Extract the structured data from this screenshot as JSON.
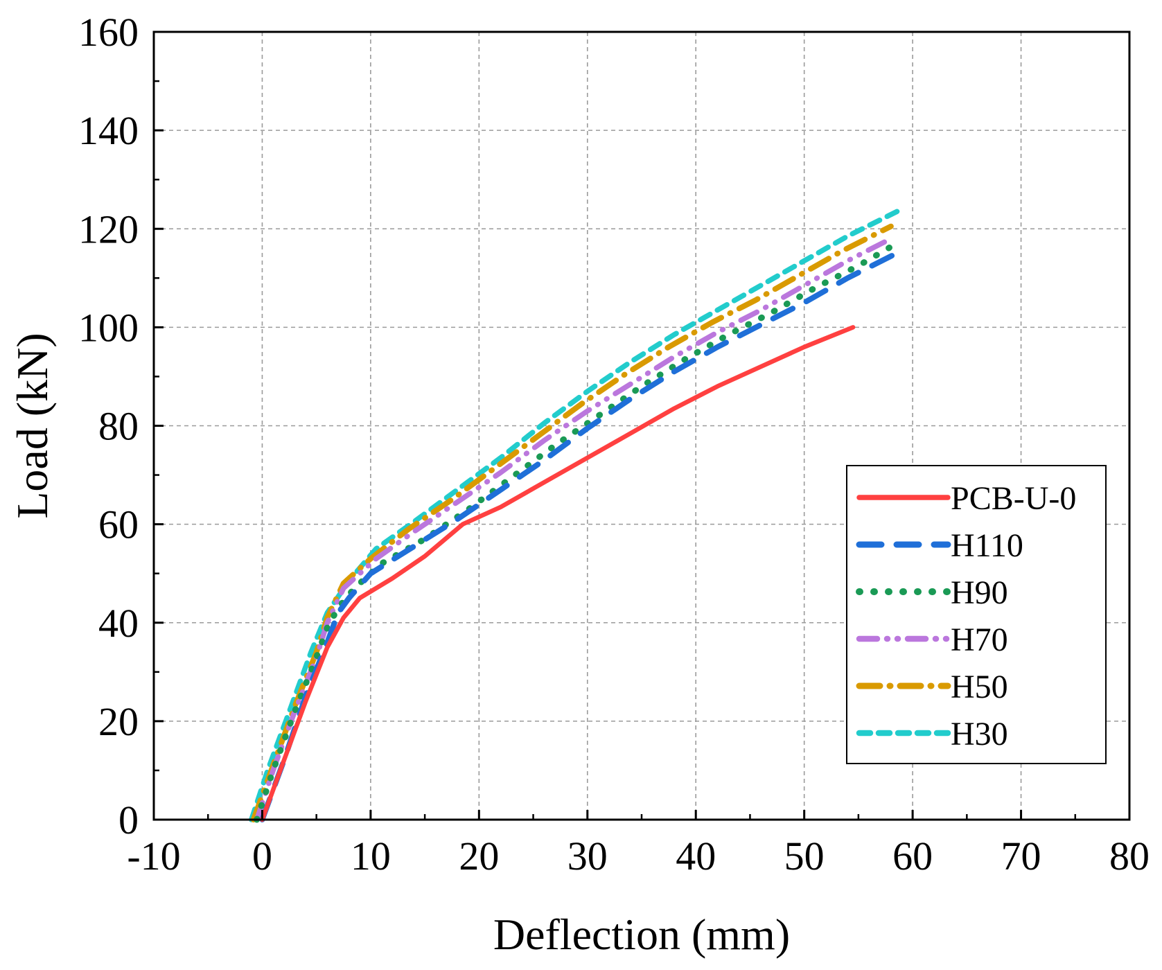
{
  "chart_data": {
    "type": "line",
    "title": "",
    "xlabel": "Deflection (mm)",
    "ylabel": "Load (kN)",
    "xlim": [
      -10,
      80
    ],
    "ylim": [
      0,
      160
    ],
    "x_ticks": [
      "-10",
      "0",
      "10",
      "20",
      "30",
      "40",
      "50",
      "60",
      "70",
      "80"
    ],
    "y_ticks": [
      "0",
      "20",
      "40",
      "60",
      "80",
      "100",
      "120",
      "140",
      "160"
    ],
    "grid": true,
    "legend_position": "lower-right",
    "series": [
      {
        "name": "PCB-U-0",
        "color": "#ff4040",
        "dash": "solid",
        "x": [
          0,
          2,
          4,
          6,
          7.5,
          9,
          12,
          15,
          18.5,
          22,
          26,
          30,
          34,
          38,
          42,
          46,
          50,
          54.5
        ],
        "y": [
          0,
          12,
          24,
          35,
          41,
          45,
          49,
          53.5,
          60,
          63.5,
          68.5,
          73.5,
          78.5,
          83.5,
          88,
          92,
          96,
          100
        ]
      },
      {
        "name": "H110",
        "color": "#1f6fd8",
        "dash": "long-dash",
        "x": [
          0,
          2,
          4,
          6,
          7,
          8,
          10,
          14,
          18,
          22,
          26,
          30,
          34,
          38,
          42,
          46,
          50,
          54,
          58.5
        ],
        "y": [
          0,
          12,
          25,
          36,
          42,
          45,
          50,
          55.5,
          61,
          67,
          73,
          79.5,
          85.5,
          91,
          96,
          100.5,
          105,
          110,
          115
        ]
      },
      {
        "name": "H90",
        "color": "#1a9a55",
        "dash": "dot",
        "x": [
          -0.5,
          1,
          3,
          5,
          6,
          7,
          8.5,
          11,
          15,
          19,
          23,
          27,
          31,
          35,
          39,
          43,
          47,
          51,
          55,
          58.5
        ],
        "y": [
          0,
          10,
          22,
          33,
          39,
          43,
          47,
          52,
          57,
          63,
          69.5,
          76,
          82,
          88,
          93.5,
          98.5,
          103,
          108,
          112.5,
          117
        ]
      },
      {
        "name": "H70",
        "color": "#bb77dd",
        "dash": "dash-dot-dot",
        "x": [
          -0.5,
          1,
          3,
          5,
          6,
          7.5,
          10.5,
          14,
          18,
          22,
          26,
          30,
          34,
          38,
          42,
          46,
          50,
          54,
          58
        ],
        "y": [
          0,
          10,
          22,
          33,
          40,
          47,
          53,
          58.5,
          64.5,
          70.5,
          77,
          83,
          88.5,
          94,
          99,
          103.5,
          108.5,
          113.5,
          118
        ]
      },
      {
        "name": "H50",
        "color": "#d99a00",
        "dash": "dash-dot",
        "x": [
          -0.8,
          1,
          3,
          5,
          6,
          7.5,
          10,
          13.5,
          17.5,
          21.5,
          25.5,
          29.5,
          33.5,
          37.5,
          41.5,
          45.5,
          49.5,
          53.5,
          58
        ],
        "y": [
          0,
          11,
          23,
          34,
          41,
          48,
          53,
          59,
          65,
          71.5,
          78,
          84.5,
          90.5,
          96,
          101,
          105.5,
          110.5,
          115.5,
          120.5
        ]
      },
      {
        "name": "H30",
        "color": "#22cccc",
        "dash": "short-dash",
        "x": [
          -1,
          0.5,
          2.5,
          4.5,
          6,
          8,
          10.5,
          14,
          18,
          22,
          26,
          30,
          34,
          38,
          42,
          46,
          50,
          54,
          59
        ],
        "y": [
          0,
          10,
          22,
          34,
          42,
          48.5,
          55,
          60.5,
          67,
          73.5,
          80.5,
          87,
          93,
          98.5,
          103.5,
          108.5,
          113.5,
          118.5,
          124
        ]
      }
    ]
  }
}
